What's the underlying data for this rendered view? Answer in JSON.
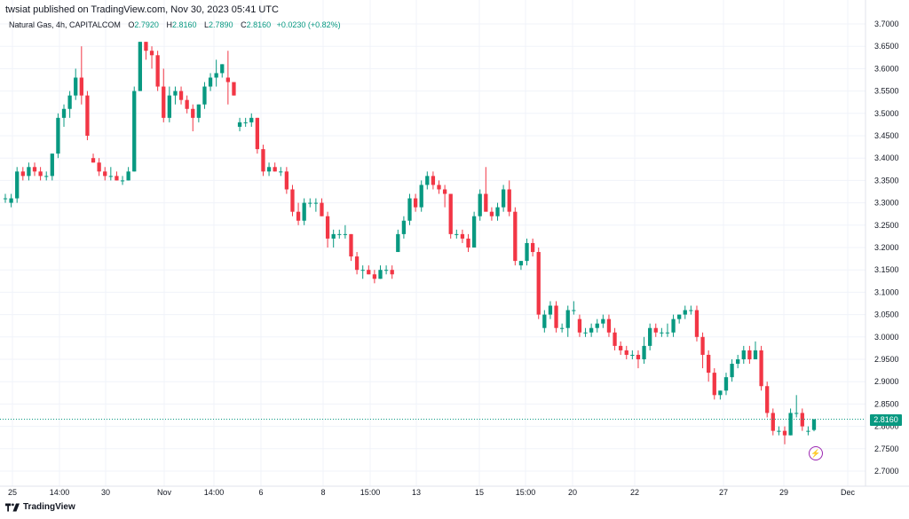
{
  "header": {
    "published_by": "twsiat published on TradingView.com, Nov 30, 2023 05:41 UTC"
  },
  "legend": {
    "symbol": "Natural Gas, 4h, CAPITALCOM",
    "open_label": "O",
    "open": "2.7920",
    "high_label": "H",
    "high": "2.8160",
    "low_label": "L",
    "low": "2.7890",
    "close_label": "C",
    "close": "2.8160",
    "change": "+0.0230 (+0.82%)"
  },
  "last_price_label": "2.8160",
  "footer": {
    "brand": "TradingView"
  },
  "colors": {
    "up": "#089981",
    "down": "#f23645",
    "grid": "#f0f3fa",
    "last_line": "#089981",
    "alert": "#9c27b0"
  },
  "chart_data": {
    "type": "candlestick",
    "interval": "4h",
    "ylim": [
      2.68,
      3.78
    ],
    "y_ticks": [
      "3.7000",
      "3.6500",
      "3.6000",
      "3.5500",
      "3.5000",
      "3.4500",
      "3.4000",
      "3.3500",
      "3.3000",
      "3.2500",
      "3.2000",
      "3.1500",
      "3.1000",
      "3.0500",
      "3.0000",
      "2.9500",
      "2.9000",
      "2.8500",
      "2.8000",
      "2.7500",
      "2.7000"
    ],
    "x_ticks": [
      "25",
      "14:00",
      "30",
      "Nov",
      "14:00",
      "6",
      "8",
      "15:00",
      "13",
      "15",
      "15:00",
      "20",
      "22",
      "27",
      "29",
      "Dec"
    ],
    "last_price": 2.816,
    "candles": [
      {
        "o": 3.31,
        "h": 3.32,
        "l": 3.3,
        "c": 3.31
      },
      {
        "o": 3.3,
        "h": 3.32,
        "l": 3.29,
        "c": 3.31
      },
      {
        "o": 3.31,
        "h": 3.38,
        "l": 3.3,
        "c": 3.37
      },
      {
        "o": 3.37,
        "h": 3.38,
        "l": 3.35,
        "c": 3.36
      },
      {
        "o": 3.36,
        "h": 3.39,
        "l": 3.35,
        "c": 3.38
      },
      {
        "o": 3.38,
        "h": 3.39,
        "l": 3.36,
        "c": 3.37
      },
      {
        "o": 3.37,
        "h": 3.38,
        "l": 3.35,
        "c": 3.36
      },
      {
        "o": 3.36,
        "h": 3.37,
        "l": 3.35,
        "c": 3.36
      },
      {
        "o": 3.36,
        "h": 3.41,
        "l": 3.35,
        "c": 3.41
      },
      {
        "o": 3.41,
        "h": 3.5,
        "l": 3.4,
        "c": 3.49
      },
      {
        "o": 3.49,
        "h": 3.52,
        "l": 3.47,
        "c": 3.51
      },
      {
        "o": 3.51,
        "h": 3.55,
        "l": 3.49,
        "c": 3.54
      },
      {
        "o": 3.54,
        "h": 3.6,
        "l": 3.53,
        "c": 3.58
      },
      {
        "o": 3.58,
        "h": 3.65,
        "l": 3.52,
        "c": 3.54
      },
      {
        "o": 3.54,
        "h": 3.55,
        "l": 3.44,
        "c": 3.45
      },
      {
        "o": 3.4,
        "h": 3.41,
        "l": 3.39,
        "c": 3.39
      },
      {
        "o": 3.39,
        "h": 3.4,
        "l": 3.36,
        "c": 3.37
      },
      {
        "o": 3.37,
        "h": 3.38,
        "l": 3.35,
        "c": 3.36
      },
      {
        "o": 3.36,
        "h": 3.38,
        "l": 3.35,
        "c": 3.36
      },
      {
        "o": 3.36,
        "h": 3.37,
        "l": 3.35,
        "c": 3.35
      },
      {
        "o": 3.35,
        "h": 3.36,
        "l": 3.34,
        "c": 3.35
      },
      {
        "o": 3.35,
        "h": 3.38,
        "l": 3.35,
        "c": 3.37
      },
      {
        "o": 3.37,
        "h": 3.56,
        "l": 3.37,
        "c": 3.55
      },
      {
        "o": 3.55,
        "h": 3.66,
        "l": 3.55,
        "c": 3.66
      },
      {
        "o": 3.66,
        "h": 3.66,
        "l": 3.62,
        "c": 3.64
      },
      {
        "o": 3.64,
        "h": 3.65,
        "l": 3.6,
        "c": 3.63
      },
      {
        "o": 3.63,
        "h": 3.64,
        "l": 3.55,
        "c": 3.56
      },
      {
        "o": 3.56,
        "h": 3.6,
        "l": 3.48,
        "c": 3.49
      },
      {
        "o": 3.49,
        "h": 3.56,
        "l": 3.48,
        "c": 3.54
      },
      {
        "o": 3.54,
        "h": 3.56,
        "l": 3.52,
        "c": 3.55
      },
      {
        "o": 3.55,
        "h": 3.56,
        "l": 3.52,
        "c": 3.53
      },
      {
        "o": 3.53,
        "h": 3.54,
        "l": 3.5,
        "c": 3.51
      },
      {
        "o": 3.51,
        "h": 3.52,
        "l": 3.46,
        "c": 3.49
      },
      {
        "o": 3.49,
        "h": 3.52,
        "l": 3.48,
        "c": 3.52
      },
      {
        "o": 3.52,
        "h": 3.57,
        "l": 3.51,
        "c": 3.56
      },
      {
        "o": 3.56,
        "h": 3.59,
        "l": 3.55,
        "c": 3.58
      },
      {
        "o": 3.58,
        "h": 3.62,
        "l": 3.56,
        "c": 3.59
      },
      {
        "o": 3.59,
        "h": 3.61,
        "l": 3.58,
        "c": 3.61
      },
      {
        "o": 3.58,
        "h": 3.64,
        "l": 3.52,
        "c": 3.57
      },
      {
        "o": 3.57,
        "h": 3.57,
        "l": 3.54,
        "c": 3.54
      },
      {
        "o": 3.47,
        "h": 3.49,
        "l": 3.46,
        "c": 3.48
      },
      {
        "o": 3.48,
        "h": 3.49,
        "l": 3.47,
        "c": 3.48
      },
      {
        "o": 3.48,
        "h": 3.5,
        "l": 3.47,
        "c": 3.49
      },
      {
        "o": 3.49,
        "h": 3.49,
        "l": 3.41,
        "c": 3.42
      },
      {
        "o": 3.42,
        "h": 3.43,
        "l": 3.36,
        "c": 3.37
      },
      {
        "o": 3.37,
        "h": 3.39,
        "l": 3.36,
        "c": 3.38
      },
      {
        "o": 3.38,
        "h": 3.39,
        "l": 3.37,
        "c": 3.37
      },
      {
        "o": 3.37,
        "h": 3.38,
        "l": 3.36,
        "c": 3.37
      },
      {
        "o": 3.37,
        "h": 3.38,
        "l": 3.32,
        "c": 3.33
      },
      {
        "o": 3.33,
        "h": 3.34,
        "l": 3.27,
        "c": 3.28
      },
      {
        "o": 3.28,
        "h": 3.3,
        "l": 3.25,
        "c": 3.26
      },
      {
        "o": 3.26,
        "h": 3.31,
        "l": 3.25,
        "c": 3.3
      },
      {
        "o": 3.3,
        "h": 3.31,
        "l": 3.29,
        "c": 3.3
      },
      {
        "o": 3.3,
        "h": 3.31,
        "l": 3.28,
        "c": 3.3
      },
      {
        "o": 3.3,
        "h": 3.31,
        "l": 3.27,
        "c": 3.27
      },
      {
        "o": 3.27,
        "h": 3.28,
        "l": 3.2,
        "c": 3.22
      },
      {
        "o": 3.22,
        "h": 3.24,
        "l": 3.2,
        "c": 3.23
      },
      {
        "o": 3.23,
        "h": 3.24,
        "l": 3.22,
        "c": 3.23
      },
      {
        "o": 3.23,
        "h": 3.25,
        "l": 3.22,
        "c": 3.23
      },
      {
        "o": 3.23,
        "h": 3.23,
        "l": 3.17,
        "c": 3.18
      },
      {
        "o": 3.18,
        "h": 3.19,
        "l": 3.14,
        "c": 3.15
      },
      {
        "o": 3.15,
        "h": 3.16,
        "l": 3.13,
        "c": 3.15
      },
      {
        "o": 3.15,
        "h": 3.16,
        "l": 3.14,
        "c": 3.14
      },
      {
        "o": 3.14,
        "h": 3.15,
        "l": 3.12,
        "c": 3.13
      },
      {
        "o": 3.13,
        "h": 3.16,
        "l": 3.13,
        "c": 3.15
      },
      {
        "o": 3.15,
        "h": 3.16,
        "l": 3.14,
        "c": 3.15
      },
      {
        "o": 3.15,
        "h": 3.16,
        "l": 3.13,
        "c": 3.14
      },
      {
        "o": 3.19,
        "h": 3.24,
        "l": 3.19,
        "c": 3.23
      },
      {
        "o": 3.23,
        "h": 3.27,
        "l": 3.22,
        "c": 3.26
      },
      {
        "o": 3.26,
        "h": 3.32,
        "l": 3.25,
        "c": 3.31
      },
      {
        "o": 3.31,
        "h": 3.32,
        "l": 3.28,
        "c": 3.29
      },
      {
        "o": 3.29,
        "h": 3.35,
        "l": 3.28,
        "c": 3.34
      },
      {
        "o": 3.34,
        "h": 3.37,
        "l": 3.33,
        "c": 3.36
      },
      {
        "o": 3.36,
        "h": 3.37,
        "l": 3.33,
        "c": 3.34
      },
      {
        "o": 3.34,
        "h": 3.35,
        "l": 3.32,
        "c": 3.33
      },
      {
        "o": 3.33,
        "h": 3.34,
        "l": 3.29,
        "c": 3.32
      },
      {
        "o": 3.32,
        "h": 3.32,
        "l": 3.22,
        "c": 3.23
      },
      {
        "o": 3.23,
        "h": 3.24,
        "l": 3.22,
        "c": 3.23
      },
      {
        "o": 3.23,
        "h": 3.24,
        "l": 3.21,
        "c": 3.22
      },
      {
        "o": 3.22,
        "h": 3.23,
        "l": 3.19,
        "c": 3.2
      },
      {
        "o": 3.2,
        "h": 3.28,
        "l": 3.2,
        "c": 3.27
      },
      {
        "o": 3.27,
        "h": 3.33,
        "l": 3.26,
        "c": 3.32
      },
      {
        "o": 3.32,
        "h": 3.38,
        "l": 3.29,
        "c": 3.28
      },
      {
        "o": 3.28,
        "h": 3.29,
        "l": 3.26,
        "c": 3.27
      },
      {
        "o": 3.27,
        "h": 3.3,
        "l": 3.26,
        "c": 3.29
      },
      {
        "o": 3.29,
        "h": 3.34,
        "l": 3.28,
        "c": 3.33
      },
      {
        "o": 3.33,
        "h": 3.35,
        "l": 3.27,
        "c": 3.28
      },
      {
        "o": 3.28,
        "h": 3.29,
        "l": 3.16,
        "c": 3.17
      },
      {
        "o": 3.16,
        "h": 3.17,
        "l": 3.15,
        "c": 3.17
      },
      {
        "o": 3.17,
        "h": 3.22,
        "l": 3.16,
        "c": 3.21
      },
      {
        "o": 3.21,
        "h": 3.22,
        "l": 3.18,
        "c": 3.19
      },
      {
        "o": 3.19,
        "h": 3.2,
        "l": 3.04,
        "c": 3.05
      },
      {
        "o": 3.02,
        "h": 3.06,
        "l": 3.01,
        "c": 3.05
      },
      {
        "o": 3.05,
        "h": 3.08,
        "l": 3.04,
        "c": 3.07
      },
      {
        "o": 3.07,
        "h": 3.08,
        "l": 3.01,
        "c": 3.02
      },
      {
        "o": 3.02,
        "h": 3.03,
        "l": 3.01,
        "c": 3.02
      },
      {
        "o": 3.02,
        "h": 3.07,
        "l": 3.0,
        "c": 3.06
      },
      {
        "o": 3.06,
        "h": 3.08,
        "l": 3.05,
        "c": 3.06
      },
      {
        "o": 3.04,
        "h": 3.05,
        "l": 3.0,
        "c": 3.01
      },
      {
        "o": 3.01,
        "h": 3.02,
        "l": 3.0,
        "c": 3.01
      },
      {
        "o": 3.01,
        "h": 3.03,
        "l": 3.0,
        "c": 3.02
      },
      {
        "o": 3.02,
        "h": 3.04,
        "l": 3.01,
        "c": 3.03
      },
      {
        "o": 3.03,
        "h": 3.05,
        "l": 3.02,
        "c": 3.04
      },
      {
        "o": 3.04,
        "h": 3.05,
        "l": 3.0,
        "c": 3.01
      },
      {
        "o": 3.01,
        "h": 3.02,
        "l": 2.97,
        "c": 2.98
      },
      {
        "o": 2.98,
        "h": 2.99,
        "l": 2.96,
        "c": 2.97
      },
      {
        "o": 2.97,
        "h": 2.98,
        "l": 2.95,
        "c": 2.96
      },
      {
        "o": 2.96,
        "h": 2.97,
        "l": 2.95,
        "c": 2.96
      },
      {
        "o": 2.96,
        "h": 2.97,
        "l": 2.93,
        "c": 2.95
      },
      {
        "o": 2.95,
        "h": 3.0,
        "l": 2.94,
        "c": 2.98
      },
      {
        "o": 2.98,
        "h": 3.03,
        "l": 2.97,
        "c": 3.02
      },
      {
        "o": 3.02,
        "h": 3.03,
        "l": 3.0,
        "c": 3.01
      },
      {
        "o": 3.01,
        "h": 3.02,
        "l": 3.0,
        "c": 3.01
      },
      {
        "o": 3.01,
        "h": 3.03,
        "l": 3.0,
        "c": 3.01
      },
      {
        "o": 3.01,
        "h": 3.05,
        "l": 3.0,
        "c": 3.04
      },
      {
        "o": 3.04,
        "h": 3.05,
        "l": 3.03,
        "c": 3.05
      },
      {
        "o": 3.05,
        "h": 3.07,
        "l": 3.04,
        "c": 3.06
      },
      {
        "o": 3.06,
        "h": 3.07,
        "l": 3.05,
        "c": 3.06
      },
      {
        "o": 3.06,
        "h": 3.07,
        "l": 2.99,
        "c": 3.0
      },
      {
        "o": 3.0,
        "h": 3.01,
        "l": 2.93,
        "c": 2.96
      },
      {
        "o": 2.96,
        "h": 2.97,
        "l": 2.9,
        "c": 2.92
      },
      {
        "o": 2.92,
        "h": 2.93,
        "l": 2.86,
        "c": 2.87
      },
      {
        "o": 2.87,
        "h": 2.88,
        "l": 2.86,
        "c": 2.88
      },
      {
        "o": 2.88,
        "h": 2.92,
        "l": 2.87,
        "c": 2.91
      },
      {
        "o": 2.91,
        "h": 2.95,
        "l": 2.9,
        "c": 2.94
      },
      {
        "o": 2.94,
        "h": 2.96,
        "l": 2.93,
        "c": 2.95
      },
      {
        "o": 2.95,
        "h": 2.98,
        "l": 2.94,
        "c": 2.97
      },
      {
        "o": 2.97,
        "h": 2.98,
        "l": 2.94,
        "c": 2.95
      },
      {
        "o": 2.95,
        "h": 2.99,
        "l": 2.95,
        "c": 2.97
      },
      {
        "o": 2.97,
        "h": 2.98,
        "l": 2.88,
        "c": 2.89
      },
      {
        "o": 2.89,
        "h": 2.9,
        "l": 2.82,
        "c": 2.83
      },
      {
        "o": 2.83,
        "h": 2.84,
        "l": 2.78,
        "c": 2.79
      },
      {
        "o": 2.79,
        "h": 2.8,
        "l": 2.78,
        "c": 2.79
      },
      {
        "o": 2.79,
        "h": 2.8,
        "l": 2.76,
        "c": 2.78
      },
      {
        "o": 2.78,
        "h": 2.84,
        "l": 2.78,
        "c": 2.83
      },
      {
        "o": 2.83,
        "h": 2.87,
        "l": 2.82,
        "c": 2.83
      },
      {
        "o": 2.83,
        "h": 2.84,
        "l": 2.79,
        "c": 2.8
      },
      {
        "o": 2.79,
        "h": 2.8,
        "l": 2.78,
        "c": 2.79
      },
      {
        "o": 2.792,
        "h": 2.816,
        "l": 2.789,
        "c": 2.816
      }
    ]
  }
}
